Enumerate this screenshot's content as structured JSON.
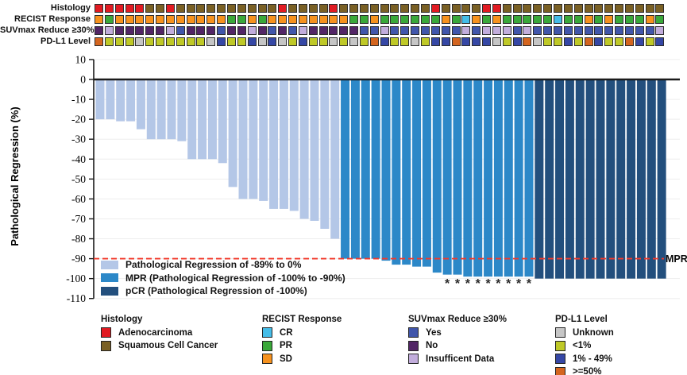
{
  "figure": {
    "ylabel": "Pathological Regression (%)",
    "mpr_label": "MPR"
  },
  "palette": {
    "adenocarcinoma": "#e11b22",
    "squamous": "#7a6024",
    "cr": "#45bde8",
    "pr": "#3aa83a",
    "sd": "#f6921e",
    "suv_yes": "#4156ab",
    "suv_no": "#522566",
    "suv_insufficient": "#c2addc",
    "pdl1_unknown": "#c6c6c6",
    "pdl1_lt1": "#bfc927",
    "pdl1_1to49": "#3547a5",
    "pdl1_ge50": "#d4651f",
    "bar_pr": "#b4c7e7",
    "bar_mpr": "#2c88c8",
    "bar_pcr": "#234f7d",
    "mpr_line": "#f2392b",
    "axis": "#1b1b1b",
    "grid": "#ededed"
  },
  "annotation_tracks": {
    "rows": [
      {
        "id": "histology",
        "label": "Histology",
        "codes": {
          "A": "adenocarcinoma",
          "S": "squamous"
        },
        "cells": "AAAAASSASSSSSSSSSSASSSSASSSSSSSSSASSSSAASSSSSSSSSSSSSSSS"
      },
      {
        "id": "recist",
        "label": "RECIST Response",
        "codes": {
          "C": "cr",
          "P": "pr",
          "D": "sd"
        },
        "cells": "DPDDDDDDDDDDDPPDPDDDDDDDDPPDPPPPPPDPCDPDPPPPPCPPDPDPPPDP"
      },
      {
        "id": "suvmax",
        "label": "SUVmax Reduce ≥30%",
        "codes": {
          "Y": "suv_yes",
          "N": "suv_no",
          "I": "suv_insufficient"
        },
        "cells": "NINNNNNIYNNNYNNINYNYINNNNNYYIYYYYYYYIYIIIYIYYYYYYYYYYYYI"
      },
      {
        "id": "pdl1",
        "label": "PD-L1 Level",
        "codes": {
          "U": "pdl1_unknown",
          "L": "pdl1_lt1",
          "M": "pdl1_1to49",
          "H": "pdl1_ge50"
        },
        "cells": "HLLLULLLLLLUMLLMUMULMLLULULHMLLULMMHMMMULMHULLMLHMLLHMLM"
      }
    ]
  },
  "chart_data": {
    "type": "bar",
    "title": "",
    "xlabel": "",
    "ylabel": "Pathological Regression (%)",
    "ylim": [
      -110,
      10
    ],
    "yticks": [
      10,
      0,
      -10,
      -20,
      -30,
      -40,
      -50,
      -60,
      -70,
      -80,
      -90,
      -100,
      -110
    ],
    "grid": true,
    "n_patients": 56,
    "values": [
      -20,
      -20,
      -21,
      -21,
      -25,
      -30,
      -30,
      -30,
      -31,
      -40,
      -40,
      -40,
      -42,
      -54,
      -60,
      -60,
      -61,
      -65,
      -65,
      -66,
      -70,
      -71,
      -75,
      -80,
      -90,
      -90,
      -90,
      -90,
      -91,
      -93,
      -93,
      -94,
      -94,
      -97,
      -98,
      -98,
      -99,
      -99,
      -99,
      -99,
      -99,
      -99,
      -99,
      -100,
      -100,
      -100,
      -100,
      -100,
      -100,
      -100,
      -100,
      -100,
      -100,
      -100,
      -100,
      -100
    ],
    "class_rule": {
      "pcr_max": -100,
      "mpr_max": -90
    },
    "asterisk_bars": [
      34,
      35,
      36,
      37,
      38,
      39,
      40,
      41,
      42
    ],
    "asterisk_symbol": "*",
    "reference_line": {
      "y": -90,
      "label": "MPR",
      "style": "dashed",
      "color_key": "mpr_line"
    },
    "legend_position": "lower-left",
    "legend": [
      {
        "color_key": "bar_pr",
        "label": "Pathological Regression of -89% to 0%"
      },
      {
        "color_key": "bar_mpr",
        "label": "MPR (Pathological Regression of -100% to -90%)"
      },
      {
        "color_key": "bar_pcr",
        "label": "pCR (Pathological Regression of -100%)"
      }
    ]
  },
  "bottom_legends": [
    {
      "id": "histology",
      "title": "Histology",
      "items": [
        {
          "color_key": "adenocarcinoma",
          "label": "Adenocarcinoma"
        },
        {
          "color_key": "squamous",
          "label": "Squamous Cell Cancer"
        }
      ]
    },
    {
      "id": "recist",
      "title": "RECIST Response",
      "items": [
        {
          "color_key": "cr",
          "label": "CR"
        },
        {
          "color_key": "pr",
          "label": "PR"
        },
        {
          "color_key": "sd",
          "label": "SD"
        }
      ]
    },
    {
      "id": "suvmax",
      "title": "SUVmax Reduce ≥30%",
      "items": [
        {
          "color_key": "suv_yes",
          "label": "Yes"
        },
        {
          "color_key": "suv_no",
          "label": "No"
        },
        {
          "color_key": "suv_insufficient",
          "label": "Insufficent Data"
        }
      ]
    },
    {
      "id": "pdl1",
      "title": "PD-L1 Level",
      "items": [
        {
          "color_key": "pdl1_unknown",
          "label": "Unknown"
        },
        {
          "color_key": "pdl1_lt1",
          "label": "<1%"
        },
        {
          "color_key": "pdl1_1to49",
          "label": "1% - 49%"
        },
        {
          "color_key": "pdl1_ge50",
          "label": ">=50%"
        }
      ]
    }
  ]
}
